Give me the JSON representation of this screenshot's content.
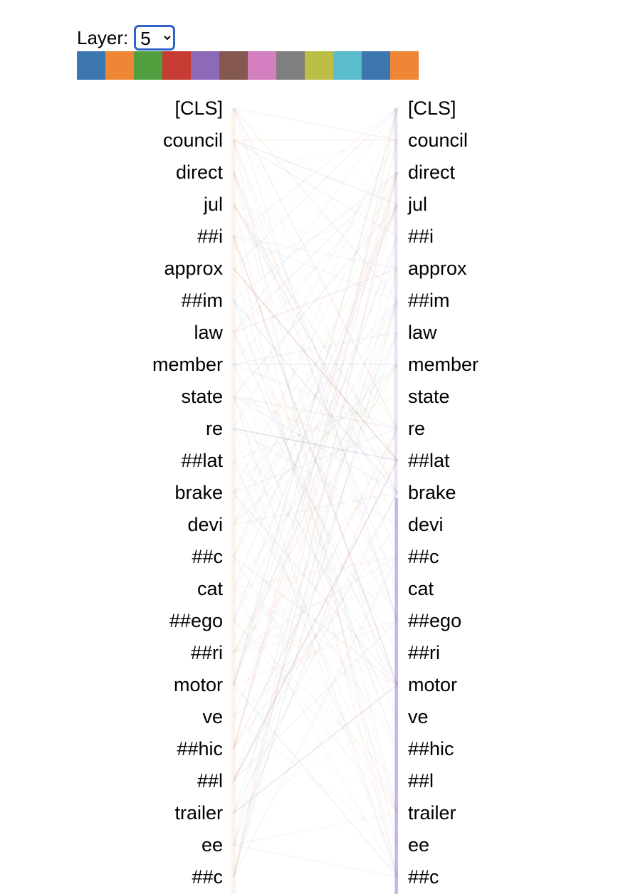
{
  "layer_control": {
    "label": "Layer:",
    "selected": "5",
    "options": [
      "5"
    ]
  },
  "heads": [
    {
      "color": "#3b76af",
      "icon": "head-swatch"
    },
    {
      "color": "#ef8636",
      "icon": "head-swatch"
    },
    {
      "color": "#519e3e",
      "icon": "head-swatch"
    },
    {
      "color": "#c63b32",
      "icon": "head-swatch"
    },
    {
      "color": "#8d6ab8",
      "icon": "head-swatch"
    },
    {
      "color": "#84584e",
      "icon": "head-swatch"
    },
    {
      "color": "#d47fbf",
      "icon": "head-swatch"
    },
    {
      "color": "#7f7f7f",
      "icon": "head-swatch"
    },
    {
      "color": "#bcbd45",
      "icon": "head-swatch"
    },
    {
      "color": "#5bbccc",
      "icon": "head-swatch"
    },
    {
      "color": "#3b76af",
      "icon": "head-swatch"
    },
    {
      "color": "#ef8636",
      "icon": "head-swatch"
    }
  ],
  "tokens": [
    "[CLS]",
    "council",
    "direct",
    "jul",
    "##i",
    "approx",
    "##im",
    "law",
    "member",
    "state",
    "re",
    "##lat",
    "brake",
    "devi",
    "##c",
    "cat",
    "##ego",
    "##ri",
    "motor",
    "ve",
    "##hic",
    "##l",
    "trailer",
    "ee",
    "##c"
  ]
}
